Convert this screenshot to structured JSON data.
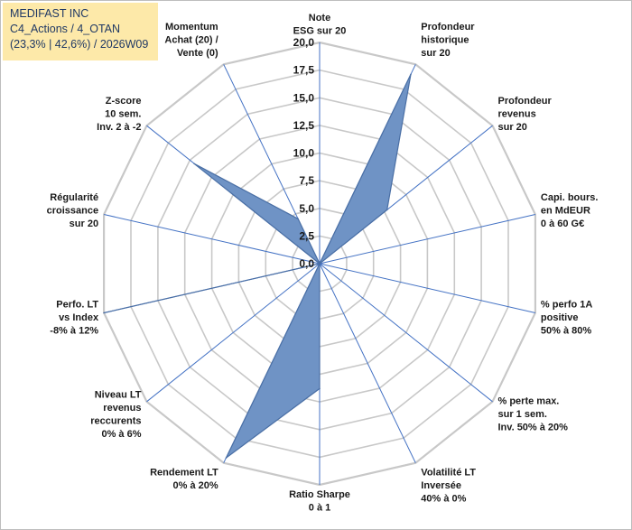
{
  "info_box": {
    "line1": "MEDIFAST INC",
    "line2": "C4_Actions / 4_OTAN",
    "line3": "(23,3% | 42,6%) / 2026W09"
  },
  "colors": {
    "fill": "#6f93c5",
    "stroke": "#4a6fa5",
    "spoke": "#4472c4",
    "grid": "#c8c8c8",
    "info_background": "#fde9a9"
  },
  "chart_data": {
    "type": "radar",
    "rlim": [
      0,
      20
    ],
    "ticks": [
      "0,0",
      "2,5",
      "5,0",
      "7,5",
      "10,0",
      "12,5",
      "15,0",
      "17,5",
      "20,0"
    ],
    "tick_values": [
      0,
      2.5,
      5,
      7.5,
      10,
      12.5,
      15,
      17.5,
      20
    ],
    "grid": true,
    "categories": [
      [
        "Note",
        "ESG sur 20"
      ],
      [
        "Profondeur",
        "historique",
        "sur 20"
      ],
      [
        "Profondeur",
        "revenus",
        "sur 20"
      ],
      [
        "Capi. bours.",
        "en MdEUR",
        "0 à 60 G€"
      ],
      [
        "% perfo 1A",
        "positive",
        "50% à 80%"
      ],
      [
        "% perte max.",
        "sur 1 sem.",
        "Inv. 50% à 20%"
      ],
      [
        "Volatilité LT",
        "Inversée",
        "40% à 0%"
      ],
      [
        "Ratio Sharpe",
        "0 à 1"
      ],
      [
        "Rendement LT",
        "0% à 20%"
      ],
      [
        "Niveau LT",
        "revenus",
        "reccurents",
        "0% à 6%"
      ],
      [
        "Perfo. LT",
        "vs Index",
        "-8% à 12%"
      ],
      [
        "Régularité",
        "croissance",
        "sur 20"
      ],
      [
        "Z-score",
        "10 sem.",
        "Inv. 2 à -2"
      ],
      [
        "Momentum",
        "Achat (20) /",
        "Vente (0)"
      ]
    ],
    "values": [
      0,
      19,
      7.8,
      0,
      0,
      0,
      0,
      11.3,
      19.5,
      0,
      20,
      0,
      14.5,
      4.5
    ]
  }
}
